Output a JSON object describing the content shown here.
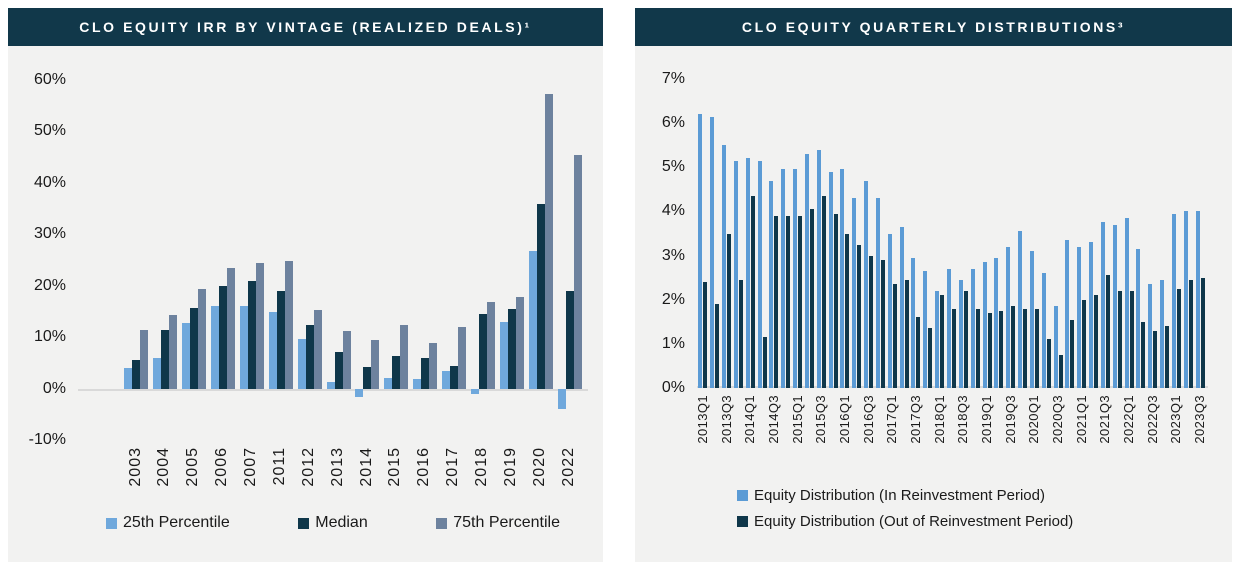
{
  "colors": {
    "header_bg": "#11384a",
    "panel_bg": "#f2f2f1",
    "title_text": "#ffffff",
    "axis_text": "#1a1a1a",
    "zero_line": "#d9d9d9",
    "light_blue": "#6fa8dc",
    "office_blue": "#5b9bd5",
    "dark_navy": "#0f374a",
    "slate_blue": "#6d829e"
  },
  "panels": {
    "left": {
      "title": "CLO EQUITY IRR BY VINTAGE (REALIZED DEALS)¹"
    },
    "right": {
      "title": "CLO EQUITY QUARTERLY DISTRIBUTIONS³"
    }
  },
  "chart_data": [
    {
      "type": "bar",
      "title": "CLO EQUITY IRR BY VINTAGE (REALIZED DEALS)¹",
      "categories": [
        "2003",
        "2004",
        "2005",
        "2006",
        "2007",
        "2011",
        "2012",
        "2013",
        "2014",
        "2015",
        "2016",
        "2017",
        "2018",
        "2019",
        "2020",
        "2022"
      ],
      "series": [
        {
          "name": "25th Percentile",
          "color": "#6fa8dc",
          "values": [
            4.0,
            6.0,
            12.7,
            16.0,
            16.1,
            14.9,
            9.6,
            1.3,
            -1.6,
            2.1,
            1.8,
            3.5,
            -1.0,
            13.0,
            26.8,
            -4.0
          ]
        },
        {
          "name": "Median",
          "color": "#0f374a",
          "values": [
            5.6,
            11.4,
            15.7,
            20.0,
            21.0,
            19.0,
            12.4,
            7.2,
            4.2,
            6.3,
            6.0,
            4.4,
            14.5,
            15.5,
            35.8,
            18.9
          ]
        },
        {
          "name": "75th Percentile",
          "color": "#6d829e",
          "values": [
            11.4,
            14.3,
            19.4,
            23.5,
            24.4,
            24.8,
            15.3,
            11.1,
            9.4,
            12.3,
            8.8,
            11.9,
            16.8,
            17.9,
            57.3,
            45.4
          ]
        }
      ],
      "xlabel": "",
      "ylabel": "",
      "ylim": [
        -10,
        60
      ],
      "yticks": [
        -10,
        0,
        10,
        20,
        30,
        40,
        50,
        60
      ],
      "ytick_suffix": "%",
      "grid": "zero-line-only",
      "legend_position": "bottom"
    },
    {
      "type": "bar",
      "title": "CLO EQUITY QUARTERLY DISTRIBUTIONS³",
      "categories": [
        "2013Q1",
        "2013Q2",
        "2013Q3",
        "2013Q4",
        "2014Q1",
        "2014Q2",
        "2014Q3",
        "2014Q4",
        "2015Q1",
        "2015Q2",
        "2015Q3",
        "2015Q4",
        "2016Q1",
        "2016Q2",
        "2016Q3",
        "2016Q4",
        "2017Q1",
        "2017Q2",
        "2017Q3",
        "2017Q4",
        "2018Q1",
        "2018Q2",
        "2018Q3",
        "2018Q4",
        "2019Q1",
        "2019Q2",
        "2019Q3",
        "2019Q4",
        "2020Q1",
        "2020Q2",
        "2020Q3",
        "2020Q4",
        "2021Q1",
        "2021Q2",
        "2021Q3",
        "2021Q4",
        "2022Q1",
        "2022Q2",
        "2022Q3",
        "2022Q4",
        "2023Q1",
        "2023Q2",
        "2023Q3"
      ],
      "label_every": 2,
      "series": [
        {
          "name": "Equity Distribution (In Reinvestment Period)",
          "color": "#5b9bd5",
          "values": [
            6.2,
            6.15,
            5.5,
            5.15,
            5.2,
            5.15,
            4.7,
            4.95,
            4.95,
            5.3,
            5.4,
            4.9,
            4.95,
            4.3,
            4.7,
            4.3,
            3.5,
            3.65,
            2.95,
            2.65,
            2.2,
            2.7,
            2.45,
            2.7,
            2.85,
            2.95,
            3.2,
            3.55,
            3.1,
            2.6,
            1.85,
            3.35,
            3.2,
            3.3,
            3.75,
            3.7,
            3.85,
            3.15,
            2.35,
            2.45,
            3.95,
            4.0,
            4.0
          ]
        },
        {
          "name": "Equity Distribution (Out of Reinvestment Period)",
          "color": "#0f374a",
          "values": [
            2.4,
            1.9,
            3.5,
            2.45,
            4.35,
            1.15,
            3.9,
            3.9,
            3.9,
            4.05,
            4.35,
            3.95,
            3.5,
            3.25,
            3.0,
            2.9,
            2.35,
            2.45,
            1.6,
            1.35,
            2.1,
            1.8,
            2.2,
            1.8,
            1.7,
            1.75,
            1.85,
            1.8,
            1.8,
            1.1,
            0.75,
            1.55,
            2.0,
            2.1,
            2.55,
            2.2,
            2.2,
            1.5,
            1.3,
            1.4,
            2.25,
            2.45,
            2.5
          ]
        }
      ],
      "xlabel": "",
      "ylabel": "",
      "ylim": [
        0,
        7
      ],
      "yticks": [
        0,
        1,
        2,
        3,
        4,
        5,
        6,
        7
      ],
      "ytick_suffix": "%",
      "grid": "zero-line-only",
      "legend_position": "bottom"
    }
  ]
}
